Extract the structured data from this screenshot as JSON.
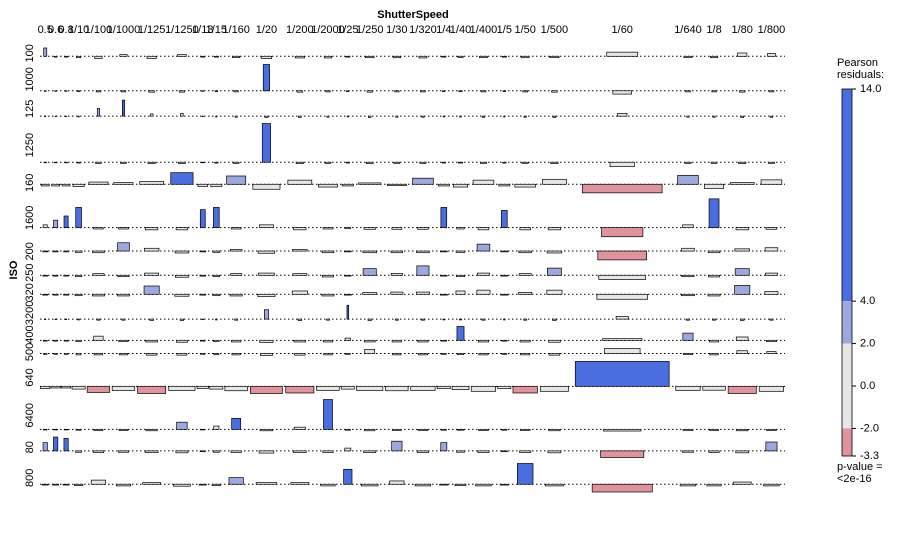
{
  "chart_data": {
    "type": "assoc",
    "x_label": "ShutterSpeed",
    "y_label": "ISO",
    "columns": [
      "0.5",
      "0.6",
      "0.8",
      "1/10",
      "1/100",
      "1/1000",
      "1/125",
      "1/1250",
      "1/13",
      "1/15",
      "1/160",
      "1/20",
      "1/200",
      "1/2000",
      "1/25",
      "1/250",
      "1/30",
      "1/320",
      "1/4",
      "1/40",
      "1/400",
      "1/5",
      "1/50",
      "1/500",
      "1/60",
      "1/640",
      "1/8",
      "1/80",
      "1/800"
    ],
    "rows": [
      "100",
      "1000",
      "125",
      "1250",
      "160",
      "1600",
      "200",
      "250",
      "320",
      "3200",
      "400",
      "500",
      "640",
      "6400",
      "80",
      "800"
    ],
    "column_weights": [
      10,
      10,
      10,
      14,
      24,
      24,
      30,
      28,
      12,
      14,
      24,
      34,
      30,
      24,
      14,
      28,
      24,
      26,
      14,
      18,
      26,
      14,
      26,
      30,
      100,
      26,
      24,
      30,
      26
    ],
    "row_weights": [
      0.33,
      0.2,
      0.1,
      0.26,
      0.85,
      0.44,
      0.52,
      0.5,
      0.54,
      0.13,
      0.42,
      0.38,
      1,
      0.4,
      0.46,
      0.64
    ],
    "residuals": [
      [
        3,
        -0.3,
        -0.3,
        -0.5,
        -0.8,
        0.6,
        -0.8,
        0.6,
        -0.3,
        -0.3,
        -0.5,
        -0.8,
        -0.6,
        -0.6,
        -0.3,
        -0.5,
        -0.5,
        -0.6,
        -0.3,
        -0.4,
        -0.5,
        -0.3,
        -0.5,
        -0.5,
        1.5,
        -0.5,
        -0.5,
        1.2,
        1.0
      ],
      [
        -0.2,
        -0.2,
        -0.2,
        -0.3,
        -0.4,
        -0.4,
        -0.5,
        -0.5,
        -0.2,
        -0.3,
        -0.4,
        9.5,
        -0.5,
        -0.4,
        -0.3,
        -0.5,
        -0.4,
        -0.4,
        -0.3,
        -0.3,
        -0.4,
        -0.3,
        -0.4,
        -0.5,
        -1.2,
        -0.4,
        -0.4,
        -0.5,
        -0.4
      ],
      [
        -0.2,
        -0.2,
        -0.2,
        -0.3,
        2.8,
        5.8,
        0.8,
        1,
        -0.2,
        -0.3,
        -0.4,
        -0.5,
        -0.5,
        -0.4,
        -0.3,
        -0.5,
        -0.4,
        -0.4,
        -0.3,
        -0.3,
        -0.4,
        -0.3,
        -0.4,
        -0.5,
        1.0,
        -0.4,
        -0.4,
        -0.5,
        -0.4
      ],
      [
        -0.2,
        -0.2,
        -0.2,
        -0.3,
        -0.4,
        -0.4,
        -0.5,
        -0.5,
        -0.2,
        -0.3,
        -0.4,
        14,
        -0.5,
        -0.4,
        -0.3,
        -0.5,
        -0.4,
        -0.4,
        -0.3,
        -0.3,
        -0.4,
        -0.3,
        -0.4,
        -0.5,
        -1.6,
        -0.4,
        -0.4,
        -0.5,
        -0.4
      ],
      [
        -0.6,
        -0.6,
        -0.6,
        -0.8,
        0.8,
        0.6,
        1,
        4.2,
        -0.8,
        -0.8,
        3,
        -1.8,
        1.5,
        -1,
        -0.6,
        0.5,
        -0.5,
        2.2,
        -0.6,
        -1,
        1.5,
        -0.6,
        -1,
        1.8,
        -3.1,
        3.2,
        -1.5,
        0.6,
        1.6
      ],
      [
        1,
        2.7,
        4.2,
        7.3,
        -0.5,
        -0.5,
        -0.8,
        -0.8,
        6.5,
        7.3,
        -0.5,
        1,
        -0.8,
        -0.5,
        -0.4,
        -0.6,
        -0.6,
        -0.6,
        7.3,
        -0.5,
        -0.8,
        6.2,
        -0.8,
        -0.8,
        -3.3,
        1,
        10.4,
        -0.8,
        -0.6
      ],
      [
        -0.3,
        -0.3,
        -0.3,
        -0.5,
        -0.6,
        3,
        1,
        -0.7,
        -0.3,
        -0.5,
        0.6,
        -0.8,
        0.6,
        -0.6,
        -0.3,
        -0.6,
        -0.6,
        -0.6,
        -0.3,
        -0.5,
        2.5,
        -0.3,
        -0.6,
        -0.7,
        -3.2,
        1,
        -0.6,
        0.8,
        1.2
      ],
      [
        -0.3,
        -0.3,
        -0.3,
        -0.5,
        0.6,
        -0.5,
        0.8,
        -0.7,
        -0.3,
        -0.5,
        0.6,
        0.8,
        0.6,
        -0.6,
        -0.3,
        2.4,
        0.7,
        3.4,
        -0.3,
        -0.5,
        0.8,
        -0.3,
        0.6,
        2.6,
        -1.5,
        -0.5,
        -0.6,
        2.4,
        0.8
      ],
      [
        -0.3,
        -0.3,
        -0.3,
        -0.5,
        -0.6,
        -0.6,
        3,
        -0.7,
        -0.3,
        -0.5,
        -0.6,
        -0.8,
        1.2,
        -0.6,
        -0.3,
        0.6,
        0.8,
        0.8,
        -0.3,
        1.2,
        1.5,
        -0.3,
        0.7,
        1.5,
        -1.8,
        -0.5,
        -0.6,
        3.2,
        1
      ],
      [
        -0.2,
        -0.2,
        -0.2,
        -0.3,
        -0.4,
        -0.4,
        -0.5,
        -0.5,
        -0.2,
        -0.3,
        -0.4,
        3.4,
        -0.5,
        -0.4,
        5,
        -0.5,
        -0.4,
        -0.4,
        -0.3,
        -0.3,
        -0.4,
        -0.3,
        -0.4,
        -0.5,
        1,
        -0.4,
        -0.4,
        -0.5,
        -0.4
      ],
      [
        -0.3,
        -0.3,
        -0.3,
        -0.5,
        1.5,
        -0.5,
        -0.6,
        -0.7,
        -0.3,
        -0.5,
        -0.6,
        -0.8,
        -0.6,
        -0.6,
        0.8,
        -0.6,
        -0.6,
        -0.6,
        -0.3,
        5,
        -0.6,
        -0.3,
        -0.6,
        -0.7,
        0.6,
        2.6,
        -0.6,
        1.2,
        -0.5
      ],
      [
        -0.3,
        -0.3,
        -0.3,
        -0.5,
        -0.5,
        -0.5,
        -0.6,
        -0.6,
        -0.3,
        -0.4,
        -0.5,
        -0.7,
        -0.6,
        -0.5,
        -0.3,
        1.5,
        -0.5,
        -0.5,
        -0.3,
        -0.4,
        -0.5,
        -0.3,
        -0.5,
        -0.6,
        1.8,
        -0.4,
        -0.5,
        1,
        0.7
      ],
      [
        -0.8,
        -0.6,
        -0.6,
        -1,
        -2.2,
        -1.5,
        -2.6,
        -1.5,
        -0.8,
        -1,
        -1.6,
        -2.6,
        -2.4,
        -1.5,
        -1,
        -1.5,
        -1.6,
        -1.5,
        -0.8,
        -1.2,
        -1.8,
        -0.8,
        -2.4,
        -1.8,
        9,
        -1.5,
        -1.4,
        -2.6,
        -1.8
      ],
      [
        -0.2,
        -0.2,
        -0.2,
        -0.3,
        -0.4,
        -0.4,
        -0.5,
        2.6,
        -0.2,
        1.2,
        4,
        -0.5,
        0.8,
        10.8,
        -0.3,
        -0.5,
        -0.4,
        -0.4,
        -0.3,
        -0.3,
        -0.4,
        -0.3,
        -0.4,
        -0.5,
        -0.6,
        -0.4,
        -0.4,
        -0.5,
        -0.4
      ],
      [
        3,
        5,
        4.5,
        -0.5,
        -0.6,
        -0.5,
        -0.6,
        -0.7,
        -0.3,
        -0.5,
        -0.6,
        -0.8,
        -0.6,
        -0.6,
        1,
        -0.6,
        3.5,
        -0.6,
        3,
        -0.5,
        -0.6,
        -0.3,
        -0.6,
        -0.7,
        -2.4,
        -0.5,
        -0.6,
        -0.7,
        3.2
      ],
      [
        -0.3,
        -0.3,
        -0.3,
        -0.5,
        1.5,
        -0.6,
        0.6,
        -0.7,
        -0.3,
        -0.5,
        2.4,
        0.6,
        0.6,
        -0.6,
        5.4,
        -0.6,
        1.2,
        -0.6,
        -0.3,
        -0.5,
        -0.6,
        -0.3,
        7.5,
        -0.6,
        -2.8,
        -0.6,
        -0.6,
        0.8,
        -0.6
      ]
    ],
    "legend_title": [
      "Pearson",
      "residuals:"
    ],
    "legend_ticks": [
      {
        "value": 14,
        "label": "14.0"
      },
      {
        "value": 4,
        "label": "4.0"
      },
      {
        "value": 2,
        "label": "2.0"
      },
      {
        "value": 0,
        "label": "0.0"
      },
      {
        "value": -2,
        "label": "-2.0"
      },
      -3.3
    ],
    "interval_colors": [
      "#4a6ee0",
      "#9da8e0",
      "#e6e6e6",
      "#e6e6e6",
      "#e0939c"
    ],
    "p_value_lines": [
      "p-value =",
      "<2e-16"
    ]
  }
}
